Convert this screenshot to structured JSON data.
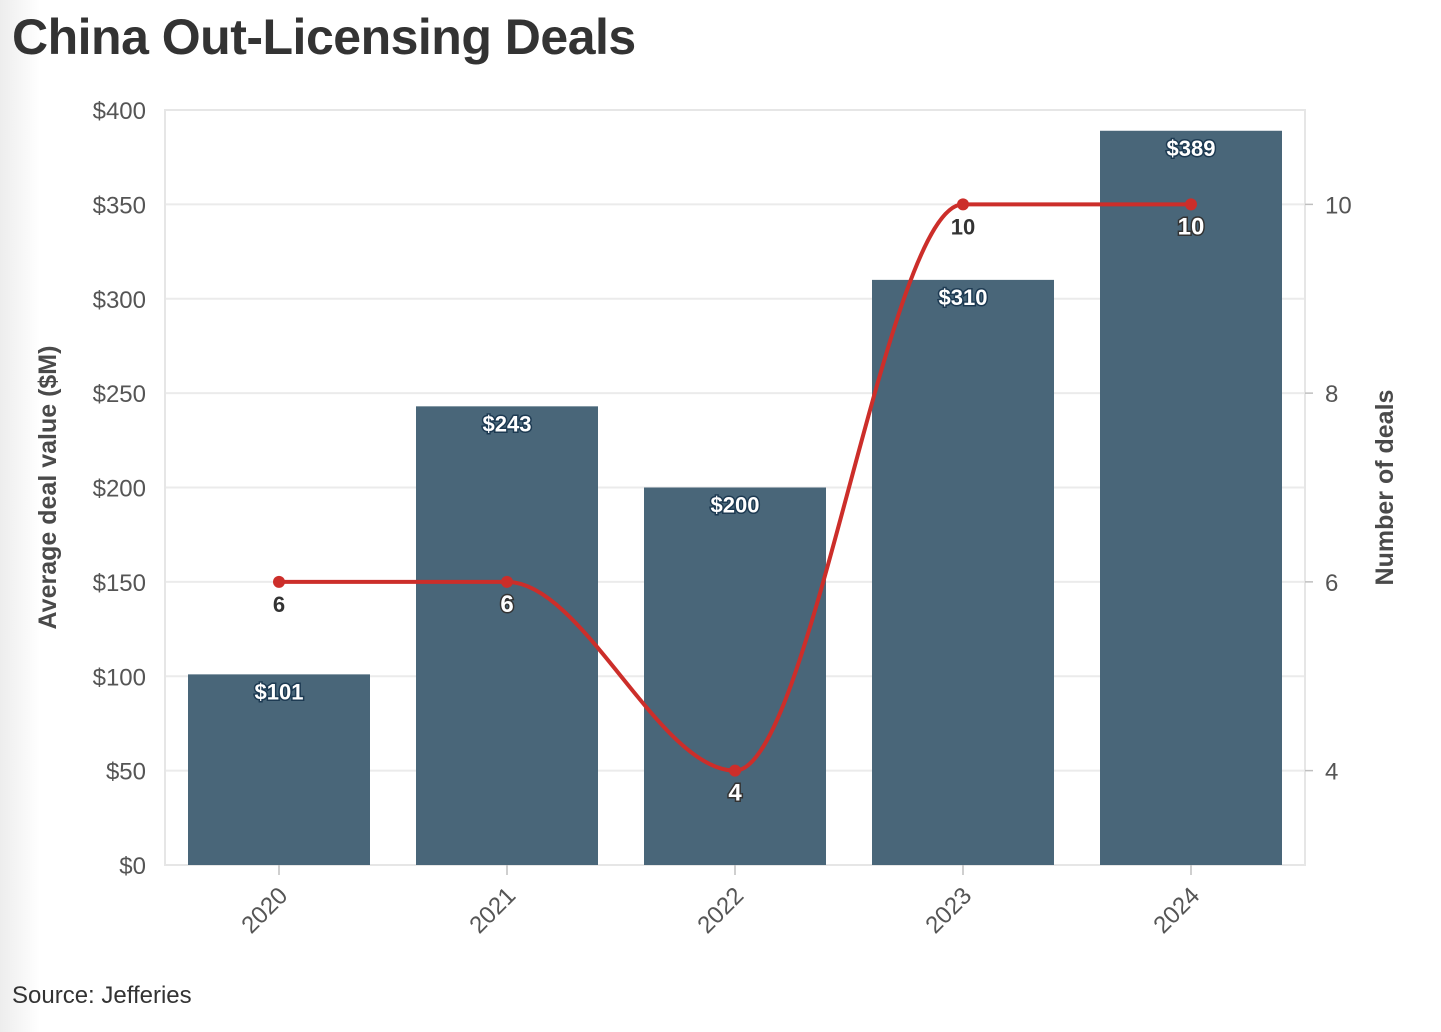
{
  "title": "China Out-Licensing Deals",
  "source": "Source: Jefferies",
  "chart_data": {
    "type": "bar",
    "categories": [
      "2020",
      "2021",
      "2022",
      "2023",
      "2024"
    ],
    "series": [
      {
        "type": "bar",
        "axis": "left",
        "values": [
          101,
          243,
          200,
          310,
          389
        ],
        "labels": [
          "$101",
          "$243",
          "$200",
          "$310",
          "$389"
        ],
        "color": "#496679"
      },
      {
        "type": "line",
        "axis": "right",
        "values": [
          6,
          6,
          4,
          10,
          10
        ],
        "labels": [
          "6",
          "6",
          "4",
          "10",
          "10"
        ],
        "color": "#cc2e2a",
        "smooth": true
      }
    ],
    "ylabel": "Average deal value ($M)",
    "y2label": "Number of deals",
    "ylim": [
      0,
      400
    ],
    "y2lim": [
      3,
      11
    ],
    "yticks": [
      "$0",
      "$50",
      "$100",
      "$150",
      "$200",
      "$250",
      "$300",
      "$350",
      "$400"
    ],
    "y2ticks": [
      "4",
      "6",
      "8",
      "10"
    ],
    "grid": true
  }
}
